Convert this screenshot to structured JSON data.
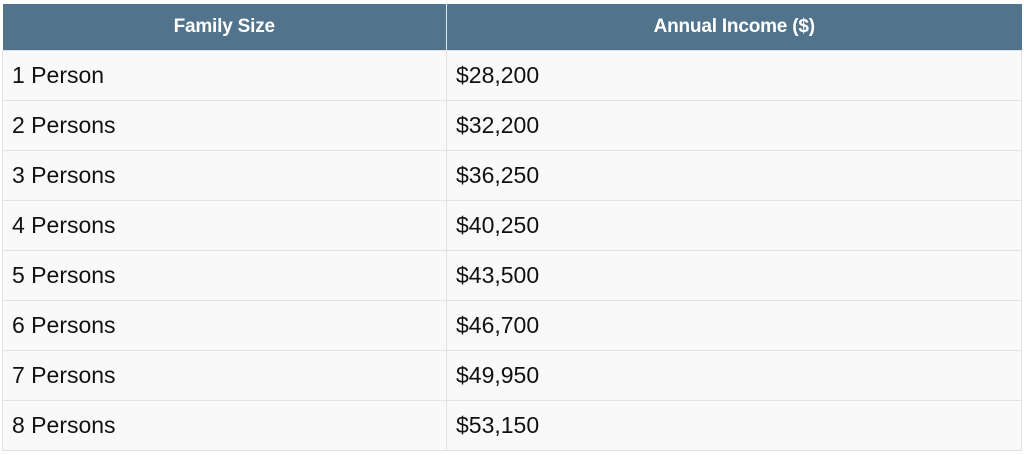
{
  "table": {
    "headers": [
      "Family Size",
      "Annual Income ($)"
    ],
    "rows": [
      {
        "family_size": "1 Person",
        "annual_income": "$28,200"
      },
      {
        "family_size": "2 Persons",
        "annual_income": "$32,200"
      },
      {
        "family_size": "3 Persons",
        "annual_income": "$36,250"
      },
      {
        "family_size": "4 Persons",
        "annual_income": "$40,250"
      },
      {
        "family_size": "5 Persons",
        "annual_income": "$43,500"
      },
      {
        "family_size": "6 Persons",
        "annual_income": "$46,700"
      },
      {
        "family_size": "7 Persons",
        "annual_income": "$49,950"
      },
      {
        "family_size": "8 Persons",
        "annual_income": "$53,150"
      }
    ]
  },
  "colors": {
    "header_background": "#51748c",
    "header_text": "#ffffff",
    "row_background": "#f9f9f9",
    "border": "#e2e2e2"
  }
}
